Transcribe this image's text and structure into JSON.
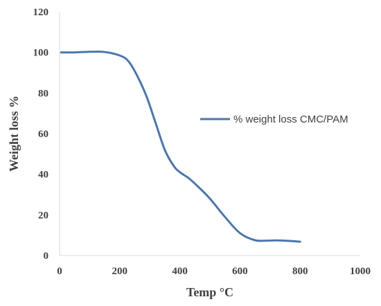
{
  "chart_data": {
    "type": "line",
    "title": "",
    "xlabel": "Temp °C",
    "ylabel": "Weight loss %",
    "xlim": [
      0,
      1000
    ],
    "ylim": [
      0,
      120
    ],
    "xticks": [
      0,
      200,
      400,
      600,
      800,
      1000
    ],
    "yticks": [
      0,
      20,
      40,
      60,
      80,
      100,
      120
    ],
    "xtick_labels": [
      "0",
      "200",
      "400",
      "600",
      "800",
      "1000"
    ],
    "ytick_labels": [
      "0",
      "20",
      "40",
      "60",
      "80",
      "100",
      "120"
    ],
    "grid": false,
    "legend_position": "right",
    "series": [
      {
        "name": "% weight  loss CMC/PAM",
        "color": "#4a76ae",
        "x": [
          5,
          50,
          100,
          150,
          200,
          230,
          260,
          290,
          320,
          350,
          380,
          400,
          430,
          460,
          500,
          550,
          600,
          650,
          690,
          720,
          760,
          800
        ],
        "y": [
          100,
          100,
          100.3,
          100.2,
          98.5,
          95.5,
          88,
          78,
          65,
          52,
          44,
          41,
          38,
          34,
          28,
          19,
          11,
          7.5,
          7.3,
          7.4,
          7.2,
          6.8
        ]
      }
    ]
  }
}
